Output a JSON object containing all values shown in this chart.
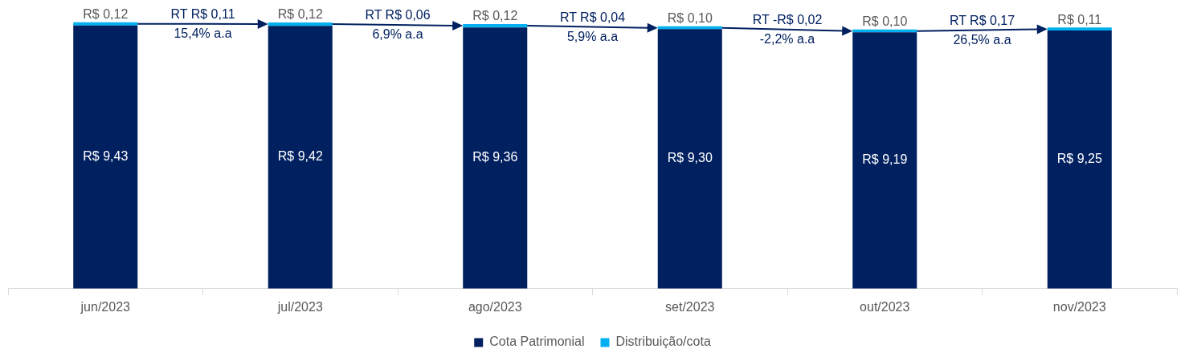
{
  "chart_data": {
    "type": "bar",
    "stacked": true,
    "categories": [
      "jun/2023",
      "jul/2023",
      "ago/2023",
      "set/2023",
      "out/2023",
      "nov/2023"
    ],
    "series": [
      {
        "name": "Cota Patrimonial",
        "color": "#002060",
        "values": [
          9.43,
          9.42,
          9.36,
          9.3,
          9.19,
          9.25
        ],
        "value_labels": [
          "R$ 9,43",
          "R$ 9,42",
          "R$ 9,36",
          "R$ 9,30",
          "R$ 9,19",
          "R$ 9,25"
        ]
      },
      {
        "name": "Distribuição/cota",
        "color": "#00b0f0",
        "values": [
          0.12,
          0.12,
          0.12,
          0.1,
          0.1,
          0.11
        ],
        "value_labels": [
          "R$ 0,12",
          "R$ 0,12",
          "R$ 0,12",
          "R$ 0,10",
          "R$ 0,10",
          "R$ 0,11"
        ]
      }
    ],
    "tick_labels": "x",
    "grid": false,
    "legend": "bottom",
    "annotations": [
      "RT R$ 0,11",
      "15,4% a.a",
      "RT R$ 0,06",
      "6,9% a.a",
      "RT R$ 0,04",
      "5,9% a.a",
      "RT -R$ 0,02",
      "-2,2% a.a",
      "RT R$ 0,17",
      "26,5% a.a"
    ]
  }
}
